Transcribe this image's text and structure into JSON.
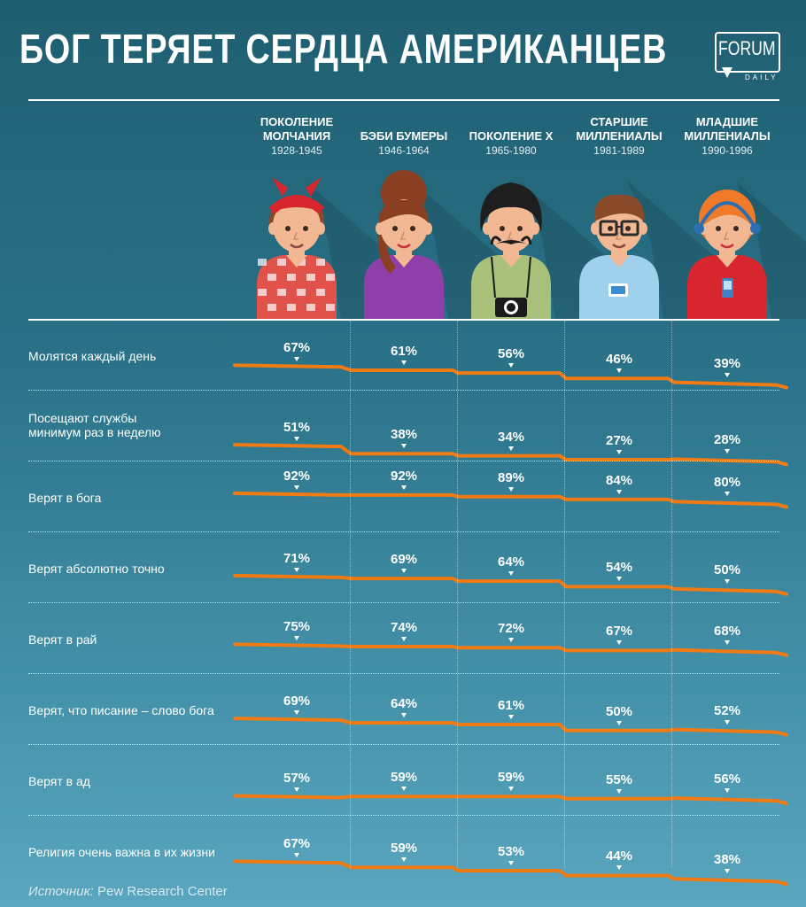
{
  "title": "БОГ ТЕРЯЕТ СЕРДЦА АМЕРИКАНЦЕВ",
  "logo": {
    "main": "FORUM",
    "sub": "DAILY"
  },
  "colors": {
    "line": "#f07a14",
    "text": "#ffffff"
  },
  "chart_data": {
    "type": "line",
    "title": "БОГ ТЕРЯЕТ СЕРДЦА АМЕРИКАНЦЕВ",
    "unit": "%",
    "ylim": [
      0,
      100
    ],
    "categories": [
      {
        "name": "ПОКОЛЕНИЕ\nМОЛЧАНИЯ",
        "years": "1928-1945"
      },
      {
        "name": "БЭБИ БУМЕРЫ",
        "years": "1946-1964"
      },
      {
        "name": "ПОКОЛЕНИЕ Х",
        "years": "1965-1980"
      },
      {
        "name": "СТАРШИЕ\nМИЛЛЕНИАЛЫ",
        "years": "1981-1989"
      },
      {
        "name": "МЛАДШИЕ\nМИЛЛЕНИАЛЫ",
        "years": "1990-1996"
      }
    ],
    "series": [
      {
        "name": "Молятся каждый день",
        "values": [
          67,
          61,
          56,
          46,
          39
        ]
      },
      {
        "name": "Посещают службы\nминимум раз в неделю",
        "values": [
          51,
          38,
          34,
          27,
          28
        ]
      },
      {
        "name": "Верят в бога",
        "values": [
          92,
          92,
          89,
          84,
          80
        ]
      },
      {
        "name": "Верят абсолютно точно",
        "values": [
          71,
          69,
          64,
          54,
          50
        ]
      },
      {
        "name": "Верят в рай",
        "values": [
          75,
          74,
          72,
          67,
          68
        ]
      },
      {
        "name": "Верят, что писание – слово бога",
        "values": [
          69,
          64,
          61,
          50,
          52
        ]
      },
      {
        "name": "Верят в ад",
        "values": [
          57,
          59,
          59,
          55,
          56
        ]
      },
      {
        "name": "Религия очень важна в их жизни",
        "values": [
          67,
          59,
          53,
          44,
          38
        ]
      }
    ]
  },
  "source": {
    "label": "Источник:",
    "value": "Pew Research Center"
  }
}
